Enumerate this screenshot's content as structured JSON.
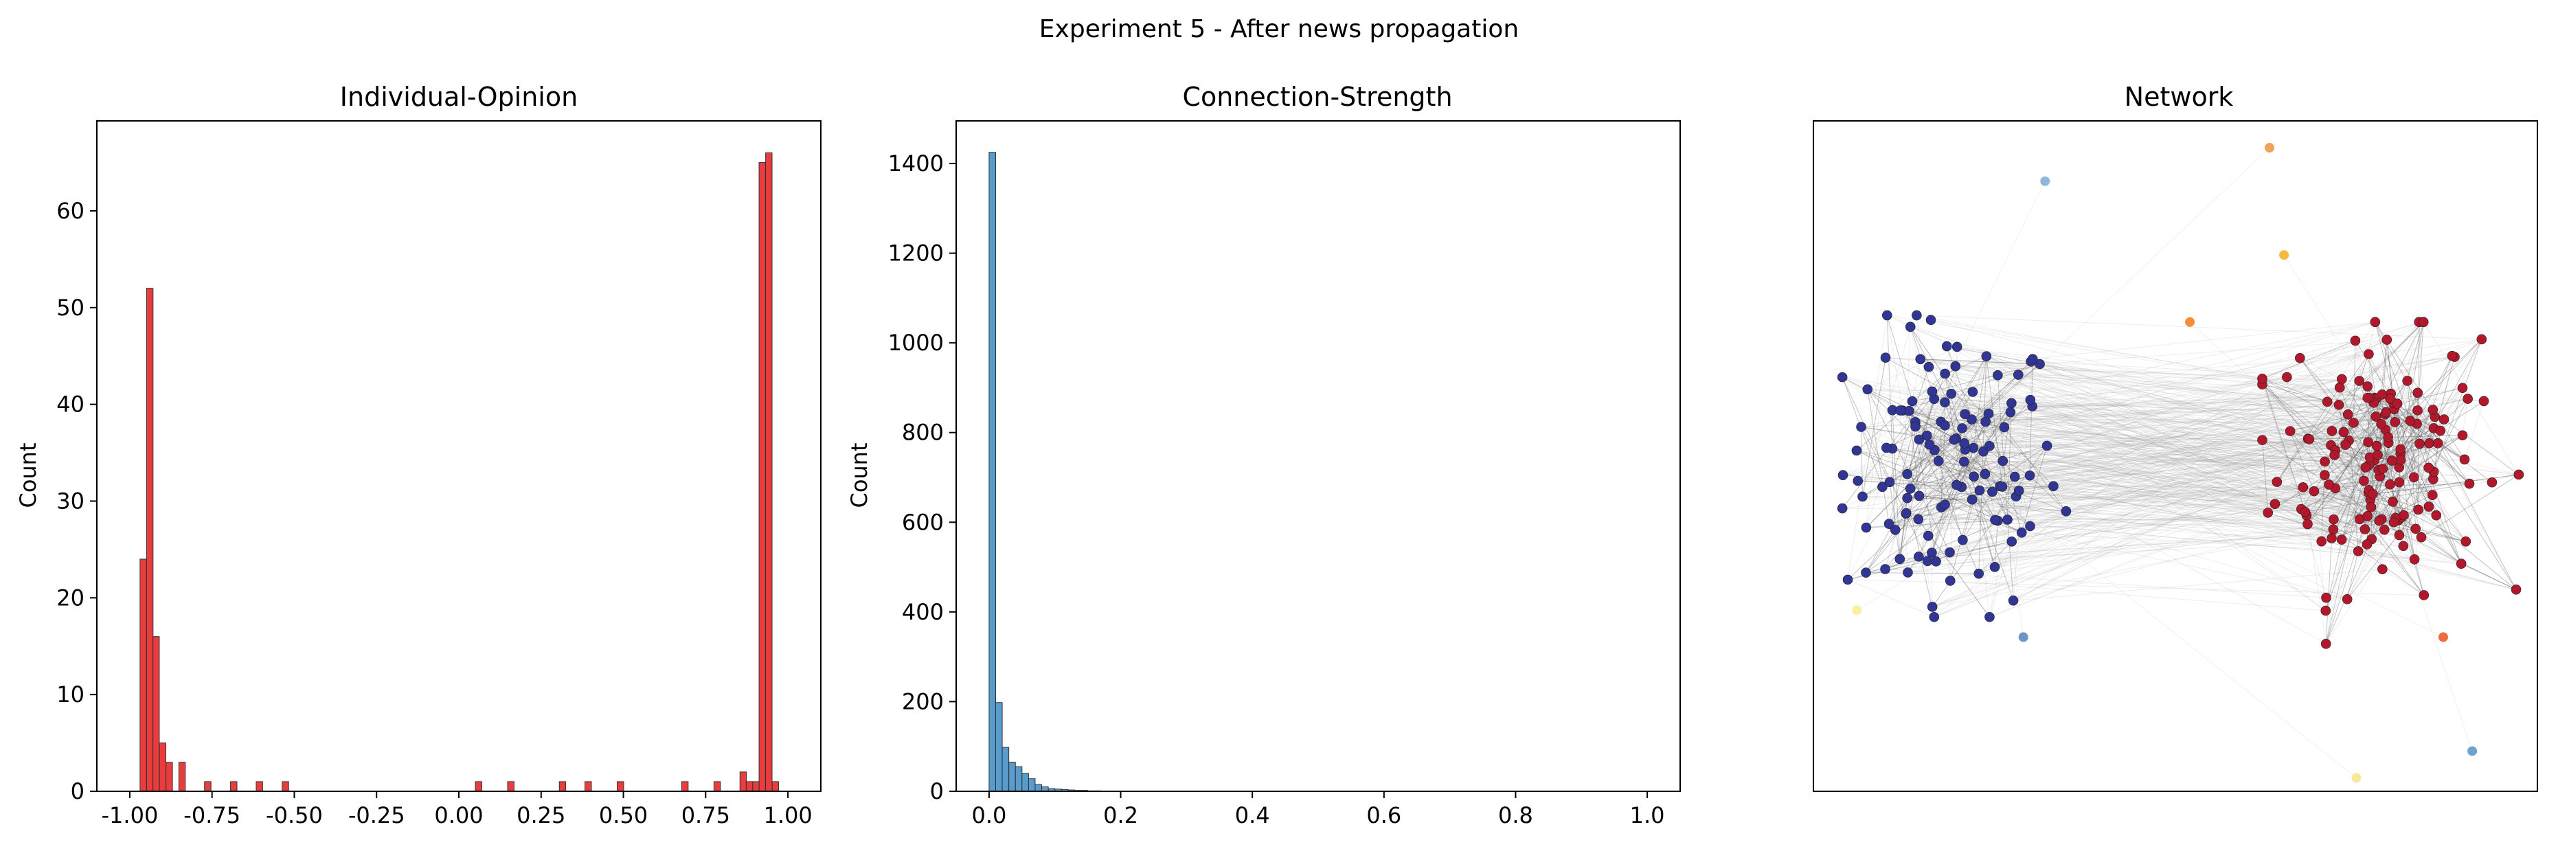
{
  "suptitle": "Experiment 5 - After news propagation",
  "chart_data": [
    {
      "type": "bar",
      "title": "Individual-Opinion",
      "xlabel": "",
      "ylabel": "Count",
      "xlim": [
        -1.1,
        1.1
      ],
      "ylim": [
        0,
        69.3
      ],
      "xticks": [
        "-1.00",
        "-0.75",
        "-0.50",
        "-0.25",
        "0.00",
        "0.25",
        "0.50",
        "0.75",
        "1.00"
      ],
      "xtick_values": [
        -1.0,
        -0.75,
        -0.5,
        -0.25,
        0.0,
        0.25,
        0.5,
        0.75,
        1.0
      ],
      "yticks": [
        "0",
        "10",
        "20",
        "30",
        "40",
        "50",
        "60"
      ],
      "ytick_values": [
        0,
        10,
        20,
        30,
        40,
        50,
        60
      ],
      "bin_width": 0.0196,
      "color": "#e41a1c",
      "bins": [
        {
          "x": -0.959,
          "count": 24
        },
        {
          "x": -0.939,
          "count": 52
        },
        {
          "x": -0.92,
          "count": 16
        },
        {
          "x": -0.9,
          "count": 5
        },
        {
          "x": -0.88,
          "count": 3
        },
        {
          "x": -0.841,
          "count": 3
        },
        {
          "x": -0.763,
          "count": 1
        },
        {
          "x": -0.684,
          "count": 1
        },
        {
          "x": -0.606,
          "count": 1
        },
        {
          "x": -0.527,
          "count": 1
        },
        {
          "x": 0.06,
          "count": 1
        },
        {
          "x": 0.158,
          "count": 1
        },
        {
          "x": 0.315,
          "count": 1
        },
        {
          "x": 0.393,
          "count": 1
        },
        {
          "x": 0.491,
          "count": 1
        },
        {
          "x": 0.687,
          "count": 1
        },
        {
          "x": 0.785,
          "count": 1
        },
        {
          "x": 0.864,
          "count": 2
        },
        {
          "x": 0.883,
          "count": 1
        },
        {
          "x": 0.903,
          "count": 1
        },
        {
          "x": 0.922,
          "count": 65
        },
        {
          "x": 0.942,
          "count": 66
        },
        {
          "x": 0.962,
          "count": 1
        }
      ]
    },
    {
      "type": "bar",
      "title": "Connection-Strength",
      "xlabel": "",
      "ylabel": "Count",
      "xlim": [
        -0.05,
        1.05
      ],
      "ylim": [
        0,
        1495
      ],
      "xticks": [
        "0.0",
        "0.2",
        "0.4",
        "0.6",
        "0.8",
        "1.0"
      ],
      "xtick_values": [
        0.0,
        0.2,
        0.4,
        0.6,
        0.8,
        1.0
      ],
      "yticks": [
        "0",
        "200",
        "400",
        "600",
        "800",
        "1000",
        "1200",
        "1400"
      ],
      "ytick_values": [
        0,
        200,
        400,
        600,
        800,
        1000,
        1200,
        1400
      ],
      "bin_width": 0.01,
      "color": "#3a8bc4",
      "bins": [
        {
          "x": 0.005,
          "count": 1425
        },
        {
          "x": 0.015,
          "count": 198
        },
        {
          "x": 0.025,
          "count": 98
        },
        {
          "x": 0.035,
          "count": 65
        },
        {
          "x": 0.045,
          "count": 55
        },
        {
          "x": 0.055,
          "count": 40
        },
        {
          "x": 0.065,
          "count": 28
        },
        {
          "x": 0.075,
          "count": 15
        },
        {
          "x": 0.085,
          "count": 10
        },
        {
          "x": 0.095,
          "count": 6
        },
        {
          "x": 0.105,
          "count": 5
        },
        {
          "x": 0.115,
          "count": 4
        },
        {
          "x": 0.125,
          "count": 3
        },
        {
          "x": 0.135,
          "count": 2
        },
        {
          "x": 0.145,
          "count": 2
        },
        {
          "x": 0.155,
          "count": 1
        },
        {
          "x": 0.165,
          "count": 1
        }
      ]
    },
    {
      "type": "scatter",
      "title": "Network",
      "xlabel": "",
      "ylabel": "",
      "axes_visible": false,
      "colormap": "opinion: blue (-1) to red (+1)",
      "cluster_colors": {
        "negative": "#313695",
        "positive": "#b2182b"
      },
      "outlier_nodes": [
        {
          "x": 0.32,
          "y": 0.91,
          "color": "#8fb8da"
        },
        {
          "x": 0.63,
          "y": 0.96,
          "color": "#f0a35a"
        },
        {
          "x": 0.65,
          "y": 0.8,
          "color": "#f5b942"
        },
        {
          "x": 0.52,
          "y": 0.7,
          "color": "#f58e3c"
        },
        {
          "x": 0.06,
          "y": 0.27,
          "color": "#fbf0a0"
        },
        {
          "x": 0.29,
          "y": 0.23,
          "color": "#6e95c2"
        },
        {
          "x": 0.87,
          "y": 0.23,
          "color": "#f06b3b"
        },
        {
          "x": 0.75,
          "y": 0.02,
          "color": "#fbe79a"
        },
        {
          "x": 0.91,
          "y": 0.06,
          "color": "#6fa3cc"
        }
      ]
    }
  ]
}
